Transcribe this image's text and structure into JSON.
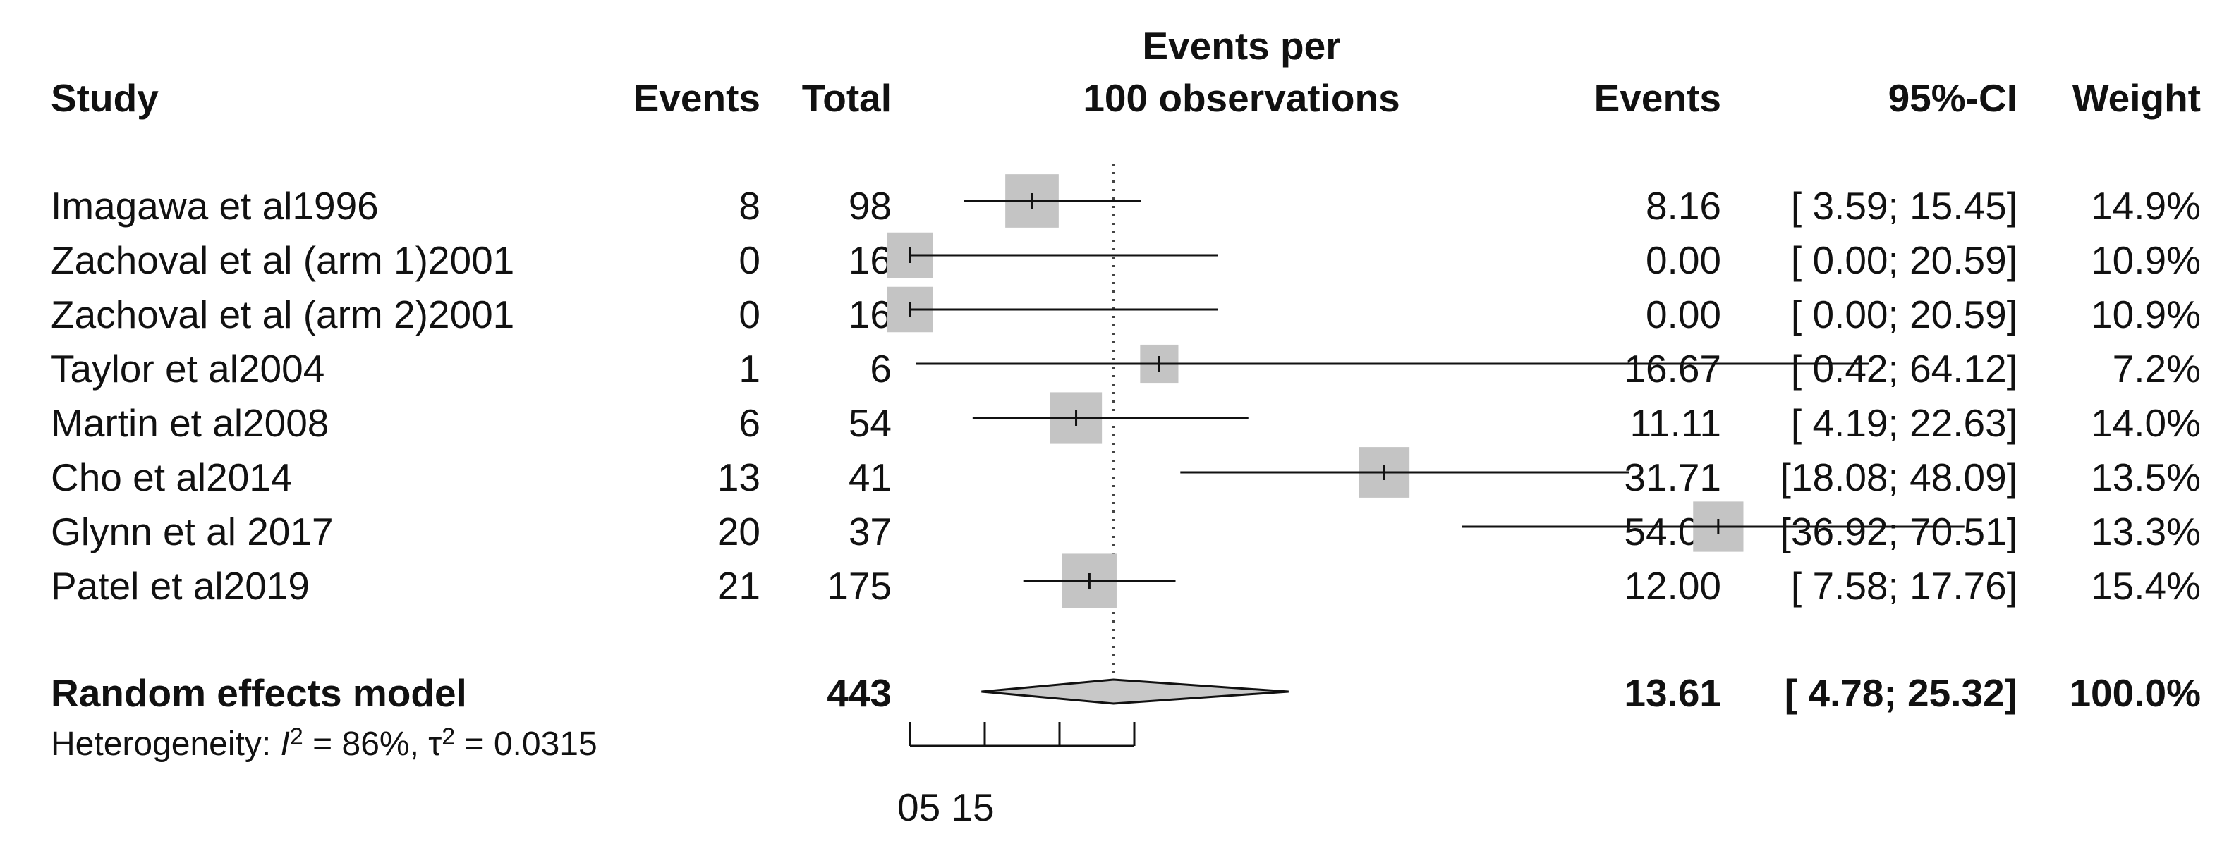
{
  "chart_data": {
    "type": "forest",
    "headers": {
      "study": "Study",
      "events": "Events",
      "total": "Total",
      "plot_line1": "Events per",
      "plot_line2": "100 observations",
      "est": "Events",
      "ci": "95%-CI",
      "weight": "Weight"
    },
    "studies": [
      {
        "study": "Imagawa et al1996",
        "events": "8",
        "total": "98",
        "est_label": "8.16",
        "ci_label": "[ 3.59; 15.45]",
        "weight_label": "14.9%",
        "est": 8.16,
        "lower": 3.59,
        "upper": 15.45,
        "weight": 14.9
      },
      {
        "study": "Zachoval et al (arm 1)2001",
        "events": "0",
        "total": "16",
        "est_label": "0.00",
        "ci_label": "[ 0.00; 20.59]",
        "weight_label": "10.9%",
        "est": 0.0,
        "lower": 0.0,
        "upper": 20.59,
        "weight": 10.9
      },
      {
        "study": "Zachoval et al (arm 2)2001",
        "events": "0",
        "total": "16",
        "est_label": "0.00",
        "ci_label": "[ 0.00; 20.59]",
        "weight_label": "10.9%",
        "est": 0.0,
        "lower": 0.0,
        "upper": 20.59,
        "weight": 10.9
      },
      {
        "study": "Taylor et al2004",
        "events": "1",
        "total": "6",
        "est_label": "16.67",
        "ci_label": "[ 0.42; 64.12]",
        "weight_label": "7.2%",
        "est": 16.67,
        "lower": 0.42,
        "upper": 64.12,
        "weight": 7.2
      },
      {
        "study": "Martin et al2008",
        "events": "6",
        "total": "54",
        "est_label": "11.11",
        "ci_label": "[ 4.19; 22.63]",
        "weight_label": "14.0%",
        "est": 11.11,
        "lower": 4.19,
        "upper": 22.63,
        "weight": 14.0
      },
      {
        "study": "Cho et al2014",
        "events": "13",
        "total": "41",
        "est_label": "31.71",
        "ci_label": "[18.08; 48.09]",
        "weight_label": "13.5%",
        "est": 31.71,
        "lower": 18.08,
        "upper": 48.09,
        "weight": 13.5
      },
      {
        "study": "Glynn et al 2017",
        "events": "20",
        "total": "37",
        "est_label": "54.05",
        "ci_label": "[36.92; 70.51]",
        "weight_label": "13.3%",
        "est": 54.05,
        "lower": 36.92,
        "upper": 70.51,
        "weight": 13.3
      },
      {
        "study": "Patel et al2019",
        "events": "21",
        "total": "175",
        "est_label": "12.00",
        "ci_label": "[ 7.58; 17.76]",
        "weight_label": "15.4%",
        "est": 12.0,
        "lower": 7.58,
        "upper": 17.76,
        "weight": 15.4
      }
    ],
    "summary": {
      "label": "Random effects model",
      "total": "443",
      "est_label": "13.61",
      "ci_label": "[ 4.78; 25.32]",
      "weight_label": "100.0%",
      "est": 13.61,
      "lower": 4.78,
      "upper": 25.32
    },
    "heterogeneity": {
      "prefix": "Heterogeneity: ",
      "i_symbol": "I",
      "i_value": " = 86%, ",
      "tau_symbol": "τ",
      "tau_value": " = 0.0315",
      "sup": "2"
    },
    "x_axis": {
      "ticks": [
        0,
        5,
        10,
        15
      ],
      "tick_label_text": "05 15"
    },
    "reference_line": 13.61,
    "colors": {
      "square": "#c4c4c4",
      "diamond": "#c8c8c8",
      "line": "#111111"
    }
  }
}
